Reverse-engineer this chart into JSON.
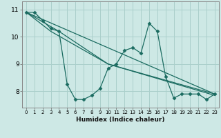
{
  "xlabel": "Humidex (Indice chaleur)",
  "background_color": "#cde8e5",
  "grid_color": "#aacfcb",
  "line_color": "#1a6b60",
  "xlim": [
    -0.5,
    23.5
  ],
  "ylim": [
    7.4,
    11.3
  ],
  "yticks": [
    8,
    9,
    10,
    11
  ],
  "xticks": [
    0,
    1,
    2,
    3,
    4,
    5,
    6,
    7,
    8,
    9,
    10,
    11,
    12,
    13,
    14,
    15,
    16,
    17,
    18,
    19,
    20,
    21,
    22,
    23
  ],
  "line1_x": [
    0,
    1,
    2,
    3,
    4,
    5,
    6,
    7,
    8,
    9,
    10,
    11,
    12,
    13,
    14,
    15,
    16,
    17,
    18,
    19,
    20,
    21,
    22,
    23
  ],
  "line1_y": [
    10.9,
    10.9,
    10.6,
    10.3,
    10.2,
    8.25,
    7.7,
    7.7,
    7.85,
    8.1,
    8.85,
    9.0,
    9.5,
    9.6,
    9.4,
    10.5,
    10.2,
    8.55,
    7.75,
    7.9,
    7.9,
    7.9,
    7.7,
    7.9
  ],
  "line2_x": [
    0,
    23
  ],
  "line2_y": [
    10.9,
    7.9
  ],
  "line3_x": [
    0,
    3,
    10,
    23
  ],
  "line3_y": [
    10.9,
    10.2,
    9.0,
    7.9
  ],
  "line4_x": [
    0,
    4,
    10,
    23
  ],
  "line4_y": [
    10.9,
    10.2,
    9.0,
    7.85
  ]
}
